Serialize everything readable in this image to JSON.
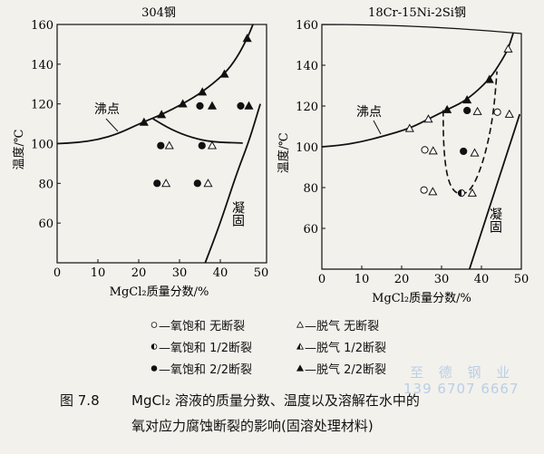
{
  "chart_data": [
    {
      "type": "scatter",
      "title": "304钢",
      "xlabel": "MgCl₂质量分数/%",
      "ylabel": "温度/℃",
      "xlim": [
        0,
        50
      ],
      "ylim": [
        40,
        160
      ],
      "xticks": [
        0,
        10,
        20,
        30,
        40,
        50
      ],
      "yticks": [
        60,
        80,
        100,
        120,
        140,
        160
      ],
      "grid": false,
      "curves": [
        {
          "label": "沸点",
          "style": "solid",
          "points": [
            [
              0,
              100
            ],
            [
              5,
              100.5
            ],
            [
              10,
              102
            ],
            [
              15,
              105
            ],
            [
              21,
              110.8
            ],
            [
              25.6,
              114.6
            ],
            [
              30.8,
              120
            ],
            [
              35.6,
              126
            ],
            [
              41,
              135
            ],
            [
              44,
              143
            ],
            [
              46.6,
              153
            ],
            [
              48,
              160
            ]
          ]
        },
        {
          "style": "solid",
          "points": [
            [
              23.5,
              112.5
            ],
            [
              28,
              107
            ],
            [
              33,
              103
            ],
            [
              38,
              100.8
            ],
            [
              45.5,
              100.3
            ]
          ]
        },
        {
          "label": "凝固",
          "style": "solid",
          "points": [
            [
              36.3,
              40
            ],
            [
              40,
              60
            ],
            [
              44,
              85
            ],
            [
              47,
              101
            ],
            [
              49.8,
              120
            ]
          ]
        }
      ],
      "points": [
        {
          "x": 21.3,
          "y": 110.8,
          "marker": "triangle-full"
        },
        {
          "x": 25.6,
          "y": 114.6,
          "marker": "triangle-full"
        },
        {
          "x": 30.8,
          "y": 120,
          "marker": "triangle-full"
        },
        {
          "x": 35.6,
          "y": 126,
          "marker": "triangle-full"
        },
        {
          "x": 41,
          "y": 135,
          "marker": "triangle-full"
        },
        {
          "x": 46.6,
          "y": 153,
          "marker": "triangle-full"
        },
        {
          "x": 35,
          "y": 119,
          "marker": "circle-full"
        },
        {
          "x": 38,
          "y": 119,
          "marker": "triangle-full"
        },
        {
          "x": 45,
          "y": 119,
          "marker": "circle-full"
        },
        {
          "x": 47,
          "y": 119,
          "marker": "triangle-full"
        },
        {
          "x": 25.4,
          "y": 99,
          "marker": "circle-full"
        },
        {
          "x": 27.5,
          "y": 99,
          "marker": "triangle-open"
        },
        {
          "x": 35.5,
          "y": 99,
          "marker": "circle-full"
        },
        {
          "x": 38,
          "y": 99,
          "marker": "triangle-open"
        },
        {
          "x": 24.5,
          "y": 80,
          "marker": "circle-full"
        },
        {
          "x": 26.7,
          "y": 80,
          "marker": "triangle-open"
        },
        {
          "x": 34.4,
          "y": 80,
          "marker": "circle-full"
        },
        {
          "x": 37,
          "y": 80,
          "marker": "triangle-open"
        }
      ],
      "annotations": [
        "沸点",
        "凝固"
      ]
    },
    {
      "type": "scatter",
      "title": "18Cr-15Ni-2Si钢",
      "xlabel": "MgCl₂质量分数/%",
      "ylabel": "温度/℃",
      "xlim": [
        0,
        50
      ],
      "ylim": [
        40,
        160
      ],
      "xticks": [
        0,
        10,
        20,
        30,
        40,
        50
      ],
      "yticks": [
        60,
        80,
        100,
        120,
        140,
        160
      ],
      "grid": false,
      "curves": [
        {
          "label": "沸点",
          "style": "solid",
          "points": [
            [
              0,
              100
            ],
            [
              5,
              100.8
            ],
            [
              10,
              102.5
            ],
            [
              15,
              105
            ],
            [
              22,
              109
            ],
            [
              26.7,
              113.6
            ],
            [
              31.4,
              118.2
            ],
            [
              36.4,
              123
            ],
            [
              42,
              133
            ],
            [
              45,
              142
            ],
            [
              46.7,
              148
            ],
            [
              48,
              156
            ]
          ]
        },
        {
          "style": "dashed",
          "points": [
            [
              30.4,
              118
            ],
            [
              30.5,
              100
            ],
            [
              31.3,
              86
            ],
            [
              32.8,
              78.5
            ],
            [
              35,
              76.3
            ],
            [
              37.5,
              79
            ],
            [
              40,
              90
            ],
            [
              42,
              105
            ],
            [
              43.2,
              120
            ],
            [
              43.9,
              137
            ]
          ]
        },
        {
          "label": "凝固",
          "style": "solid",
          "points": [
            [
              37,
              40
            ],
            [
              49.6,
              116
            ]
          ]
        }
      ],
      "points": [
        {
          "x": 22,
          "y": 109,
          "marker": "triangle-open"
        },
        {
          "x": 26.7,
          "y": 113.6,
          "marker": "triangle-open"
        },
        {
          "x": 31.4,
          "y": 118.2,
          "marker": "triangle-full"
        },
        {
          "x": 36.4,
          "y": 123,
          "marker": "triangle-full"
        },
        {
          "x": 42,
          "y": 133,
          "marker": "triangle-full"
        },
        {
          "x": 46.7,
          "y": 148,
          "marker": "triangle-open"
        },
        {
          "x": 36.4,
          "y": 117.8,
          "marker": "circle-full"
        },
        {
          "x": 39,
          "y": 117.3,
          "marker": "triangle-open"
        },
        {
          "x": 44,
          "y": 117,
          "marker": "circle-open"
        },
        {
          "x": 47,
          "y": 116,
          "marker": "triangle-open"
        },
        {
          "x": 25.8,
          "y": 98.5,
          "marker": "circle-open"
        },
        {
          "x": 27.9,
          "y": 98,
          "marker": "triangle-open"
        },
        {
          "x": 35.5,
          "y": 97.8,
          "marker": "circle-full"
        },
        {
          "x": 38.3,
          "y": 97,
          "marker": "triangle-open"
        },
        {
          "x": 25.6,
          "y": 78.8,
          "marker": "circle-open"
        },
        {
          "x": 27.8,
          "y": 78,
          "marker": "triangle-open"
        },
        {
          "x": 35,
          "y": 77.3,
          "marker": "circle-half"
        },
        {
          "x": 37.7,
          "y": 77.3,
          "marker": "triangle-open"
        }
      ],
      "annotations": [
        "沸点",
        "凝固"
      ]
    }
  ],
  "legend": [
    {
      "marker": "circle-open",
      "text": "—氧饱和  无断裂"
    },
    {
      "marker": "circle-half",
      "text": "—氧饱和 1/2断裂"
    },
    {
      "marker": "circle-full",
      "text": "—氧饱和 2/2断裂"
    },
    {
      "marker": "triangle-open",
      "text": "—脱气   无断裂"
    },
    {
      "marker": "triangle-half",
      "text": "—脱气  1/2断裂"
    },
    {
      "marker": "triangle-full",
      "text": "—脱气  2/2断裂"
    }
  ],
  "caption": {
    "number": "图 7.8",
    "line1": "MgCl₂ 溶液的质量分数、温度以及溶解在水中的",
    "line2": "氧对应力腐蚀断裂的影响(固溶处理材料)"
  },
  "watermark": {
    "name": "至 德 钢 业",
    "phone": "139 6707 6667"
  },
  "colors": {
    "ink": "#111111",
    "paper": "#f3f1ec",
    "watermark": "#b9cfe6"
  }
}
